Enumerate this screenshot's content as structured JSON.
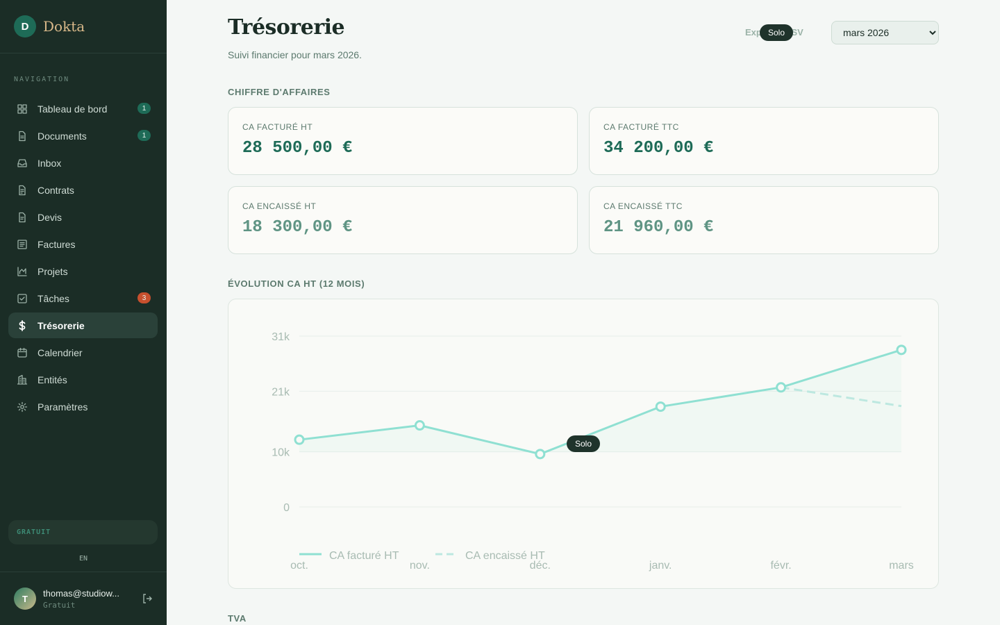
{
  "app": {
    "logo_letter": "D",
    "name": "Dokta"
  },
  "sidebar": {
    "heading": "NAVIGATION",
    "items": [
      {
        "label": "Tableau de bord",
        "icon": "dashboard-icon",
        "badge": "1"
      },
      {
        "label": "Documents",
        "icon": "document-icon",
        "badge": "1"
      },
      {
        "label": "Inbox",
        "icon": "inbox-icon"
      },
      {
        "label": "Contrats",
        "icon": "contract-icon"
      },
      {
        "label": "Devis",
        "icon": "quote-icon"
      },
      {
        "label": "Factures",
        "icon": "invoice-icon"
      },
      {
        "label": "Projets",
        "icon": "chart-icon"
      },
      {
        "label": "Tâches",
        "icon": "task-icon",
        "badge": "3"
      },
      {
        "label": "Trésorerie",
        "icon": "dollar-icon",
        "active": true
      },
      {
        "label": "Calendrier",
        "icon": "calendar-icon"
      },
      {
        "label": "Entités",
        "icon": "building-icon"
      },
      {
        "label": "Paramètres",
        "icon": "gear-icon"
      }
    ],
    "plan": "GRATUIT",
    "language": "EN",
    "user": {
      "initial": "T",
      "email": "thomas@studiow...",
      "plan": "Gratuit"
    }
  },
  "header": {
    "title": "Trésorerie",
    "subtitle": "Suivi financier pour mars 2026.",
    "export_label": "Exporter CSV",
    "export_tooltip": "Solo",
    "month_selected": "mars 2026"
  },
  "revenue": {
    "section_label": "CHIFFRE D'AFFAIRES",
    "cards": [
      {
        "label": "CA FACTURÉ HT",
        "value": "28 500,00 €"
      },
      {
        "label": "CA FACTURÉ TTC",
        "value": "34 200,00 €"
      },
      {
        "label": "CA ENCAISSÉ HT",
        "value": "18 300,00 €"
      },
      {
        "label": "CA ENCAISSÉ TTC",
        "value": "21 960,00 €"
      }
    ]
  },
  "chart_section": {
    "label": "ÉVOLUTION CA HT (12 MOIS)",
    "tooltip": "Solo"
  },
  "vat_section": {
    "label": "TVA"
  },
  "colors": {
    "accent": "#1e6b57",
    "line": "#8fe0d2",
    "sidebar": "#1b2d26",
    "alert": "#c7502e"
  },
  "chart_data": {
    "type": "line",
    "x": [
      "oct.",
      "nov.",
      "déc.",
      "janv.",
      "févr.",
      "mars"
    ],
    "y_ticks": [
      "31k",
      "21k",
      "10k",
      "0"
    ],
    "ylim": [
      0,
      31000
    ],
    "series": [
      {
        "name": "CA facturé HT",
        "values": [
          12200,
          14800,
          9600,
          18200,
          21700,
          28500
        ]
      },
      {
        "name": "CA encaissé HT",
        "values": [
          null,
          null,
          null,
          null,
          21700,
          18300
        ]
      }
    ],
    "grid": true,
    "legend": "bottom-left"
  }
}
